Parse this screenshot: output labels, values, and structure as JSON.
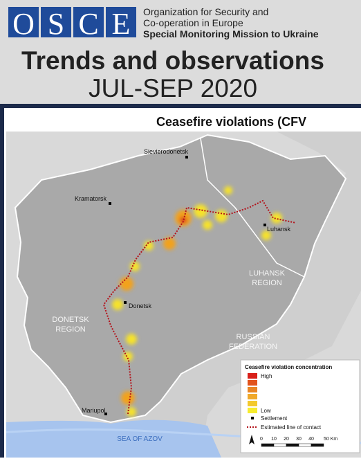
{
  "header": {
    "logo": [
      "O",
      "S",
      "C",
      "E"
    ],
    "org_lines": [
      "Organization for Security and",
      "Co-operation in Europe",
      "Special Monitoring Mission to Ukraine"
    ],
    "title": "Trends and observations",
    "subtitle": "JUL-SEP 2020"
  },
  "map": {
    "title": "Ceasefire violations (CFV",
    "places": [
      {
        "label": "Sievierodonetsk"
      },
      {
        "label": "Kramatorsk"
      },
      {
        "label": "Luhansk"
      },
      {
        "label": "Donetsk"
      },
      {
        "label": "Mariupol"
      }
    ],
    "regions": [
      {
        "lines": [
          "LUHANSK",
          "REGION"
        ]
      },
      {
        "lines": [
          "DONETSK",
          "REGION"
        ]
      },
      {
        "lines": [
          "RUSSIAN",
          "FEDERATION"
        ]
      }
    ],
    "sea": "SEA OF AZOV",
    "legend": {
      "title": "Ceasefire violation concentration",
      "high": "High",
      "low": "Low",
      "settlement": "Settlement",
      "line_of_contact": "Estimated line of contact",
      "scale": [
        "0",
        "10",
        "20",
        "30",
        "40",
        "50 Km"
      ]
    }
  }
}
